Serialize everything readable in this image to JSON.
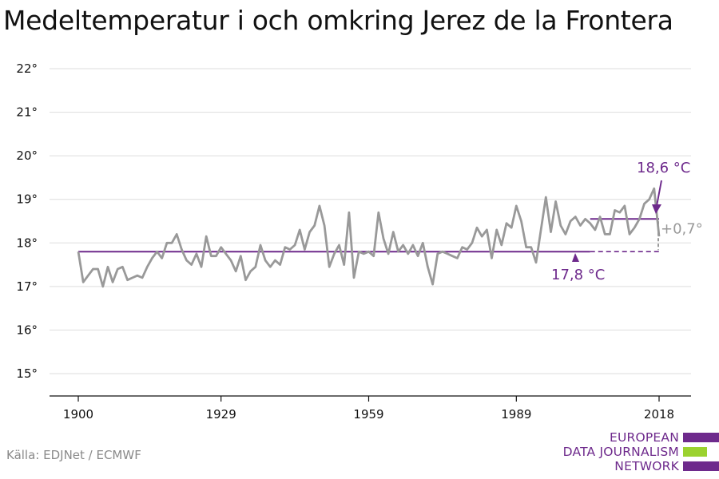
{
  "title": "Medeltemperatur i och omkring Jerez de la Frontera",
  "source": "Källa: EDJNet / ECMWF",
  "logo": {
    "lines": [
      "EUROPEAN",
      "DATA JOURNALISM",
      "NETWORK"
    ],
    "colors": {
      "text": "#6e2a8c",
      "purple": "#6e2a8c",
      "green": "#9bd22f"
    }
  },
  "colors": {
    "series": "#999999",
    "average": "#6e2a8c",
    "grid": "#dddddd",
    "axis": "#111111",
    "diff": "#999999"
  },
  "chart_data": {
    "type": "line",
    "title": "Medeltemperatur i och omkring Jerez de la Frontera",
    "xlabel": "",
    "ylabel": "",
    "xlim": [
      1900,
      2018
    ],
    "ylim": [
      15,
      22
    ],
    "x_ticks": [
      1900,
      1929,
      1959,
      1989,
      2018
    ],
    "x_tick_labels": [
      "1900",
      "1929",
      "1959",
      "1989",
      "2018"
    ],
    "y_ticks": [
      15,
      16,
      17,
      18,
      19,
      20,
      21,
      22
    ],
    "y_tick_labels": [
      "15°",
      "16°",
      "17°",
      "18°",
      "19°",
      "20°",
      "21°",
      "22°"
    ],
    "grid": "horizontal",
    "series": [
      {
        "x": [
          1900,
          1901,
          1902,
          1903,
          1904,
          1905,
          1906,
          1907,
          1908,
          1909,
          1910,
          1911,
          1912,
          1913,
          1914,
          1915,
          1916,
          1917,
          1918,
          1919,
          1920,
          1921,
          1922,
          1923,
          1924,
          1925,
          1926,
          1927,
          1928,
          1929,
          1930,
          1931,
          1932,
          1933,
          1934,
          1935,
          1936,
          1937,
          1938,
          1939,
          1940,
          1941,
          1942,
          1943,
          1944,
          1945,
          1946,
          1947,
          1948,
          1949,
          1950,
          1951,
          1952,
          1953,
          1954,
          1955,
          1956,
          1957,
          1958,
          1959,
          1960,
          1961,
          1962,
          1963,
          1964,
          1965,
          1966,
          1967,
          1968,
          1969,
          1970,
          1971,
          1972,
          1973,
          1974,
          1975,
          1976,
          1977,
          1978,
          1979,
          1980,
          1981,
          1982,
          1983,
          1984,
          1985,
          1986,
          1987,
          1988,
          1989,
          1990,
          1991,
          1992,
          1993,
          1994,
          1995,
          1996,
          1997,
          1998,
          1999,
          2000,
          2001,
          2002,
          2003,
          2004,
          2005,
          2006,
          2007,
          2008,
          2009,
          2010,
          2011,
          2012,
          2013,
          2014,
          2015,
          2016,
          2017,
          2018
        ],
        "values": [
          17.8,
          17.1,
          17.25,
          17.4,
          17.4,
          17.0,
          17.45,
          17.1,
          17.4,
          17.45,
          17.15,
          17.2,
          17.25,
          17.2,
          17.45,
          17.65,
          17.8,
          17.65,
          18.0,
          18.0,
          18.2,
          17.85,
          17.6,
          17.5,
          17.75,
          17.45,
          18.15,
          17.7,
          17.7,
          17.9,
          17.75,
          17.6,
          17.35,
          17.7,
          17.15,
          17.35,
          17.45,
          17.95,
          17.6,
          17.45,
          17.6,
          17.5,
          17.9,
          17.85,
          17.95,
          18.3,
          17.85,
          18.25,
          18.4,
          18.85,
          18.4,
          17.45,
          17.75,
          17.95,
          17.5,
          18.7,
          17.2,
          17.8,
          17.75,
          17.8,
          17.7,
          18.7,
          18.1,
          17.75,
          18.25,
          17.8,
          17.95,
          17.75,
          17.95,
          17.7,
          18.0,
          17.45,
          17.05,
          17.75,
          17.8,
          17.75,
          17.7,
          17.65,
          17.9,
          17.85,
          18.0,
          18.35,
          18.15,
          18.3,
          17.65,
          18.3,
          17.95,
          18.45,
          18.35,
          18.85,
          18.5,
          17.9,
          17.9,
          17.55,
          18.3,
          19.05,
          18.25,
          18.95,
          18.4,
          18.2,
          18.5,
          18.6,
          18.4,
          18.55,
          18.45,
          18.3,
          18.6,
          18.2,
          18.2,
          18.75,
          18.7,
          18.85,
          18.2,
          18.35,
          18.55,
          18.9,
          19.0,
          19.25,
          18.15
        ]
      }
    ],
    "reference_lines": [
      {
        "label": "17,8 °C",
        "value": 17.8,
        "from": 1900,
        "to": 2018,
        "dashed_from": 2004
      },
      {
        "label": "18,6 °C",
        "value": 18.55,
        "from": 2004,
        "to": 2018
      }
    ],
    "difference": {
      "label": "+0,7°",
      "at": 2018,
      "from": 17.8,
      "to": 18.55
    }
  }
}
